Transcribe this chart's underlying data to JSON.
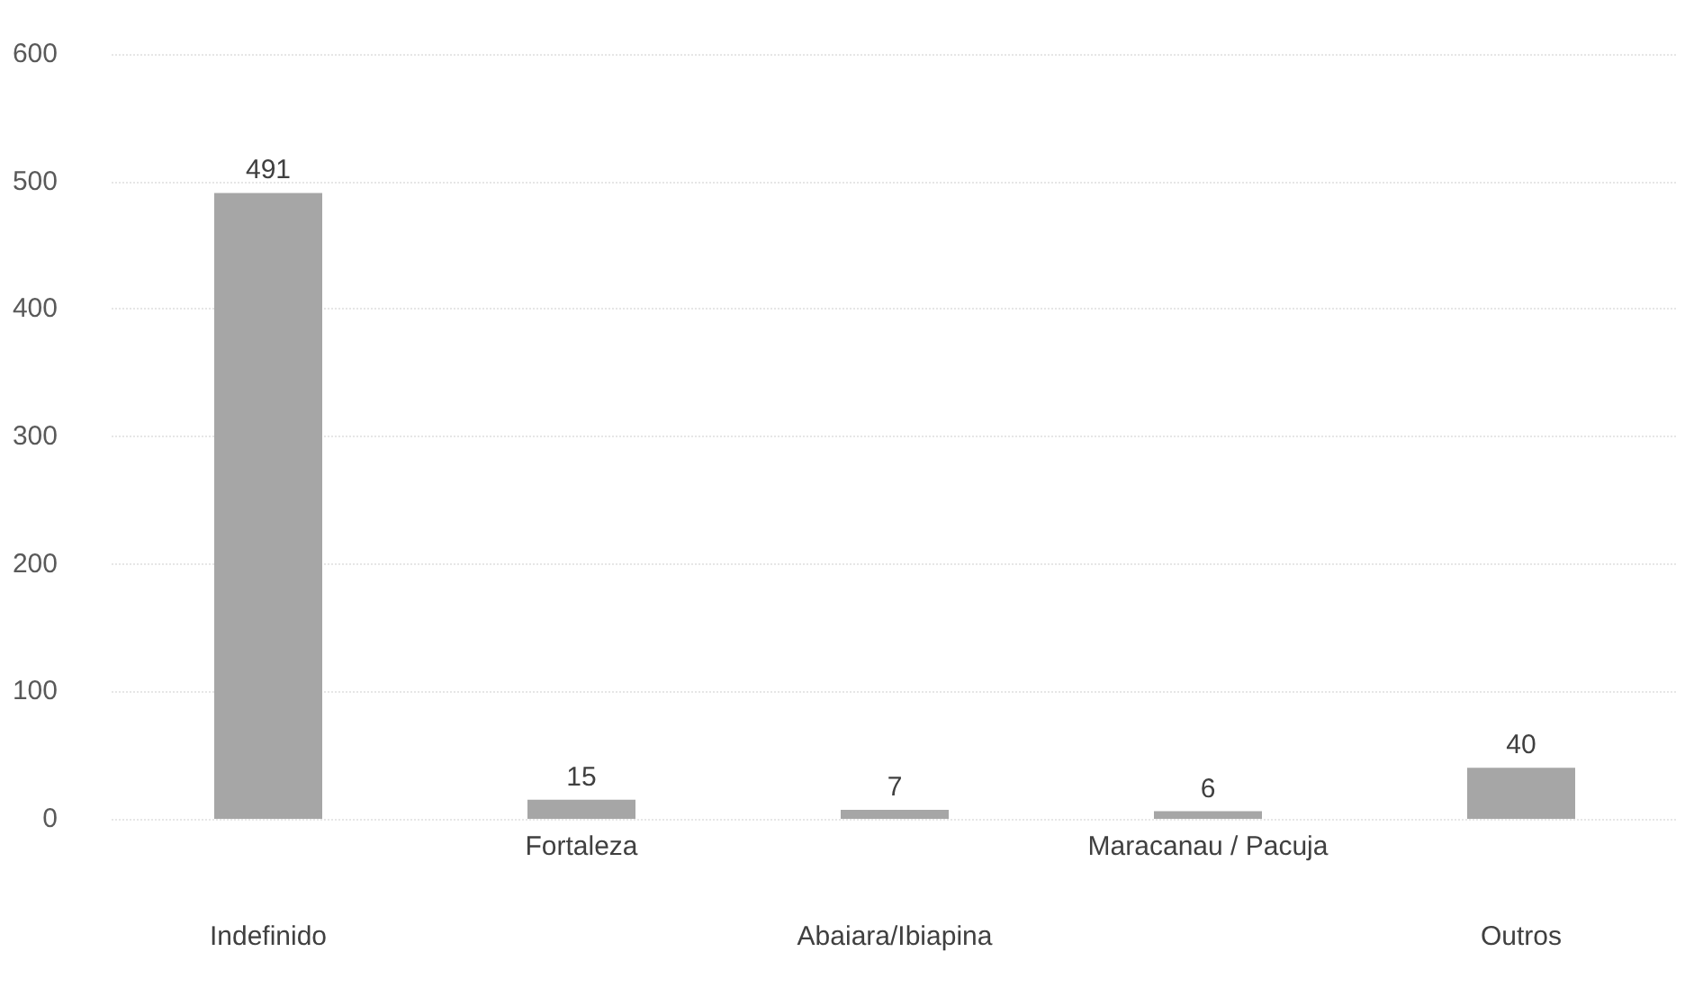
{
  "chart_data": {
    "type": "bar",
    "categories": [
      "Indefinido",
      "Fortaleza",
      "Abaiara/Ibiapina",
      "Maracanau / Pacuja",
      "Outros"
    ],
    "values": [
      491,
      15,
      7,
      6,
      40
    ],
    "color": "#a6a6a6",
    "data_labels": true,
    "ylim": [
      0,
      600
    ],
    "yticks": [
      0,
      100,
      200,
      300,
      400,
      500,
      600
    ],
    "grid": "y"
  }
}
